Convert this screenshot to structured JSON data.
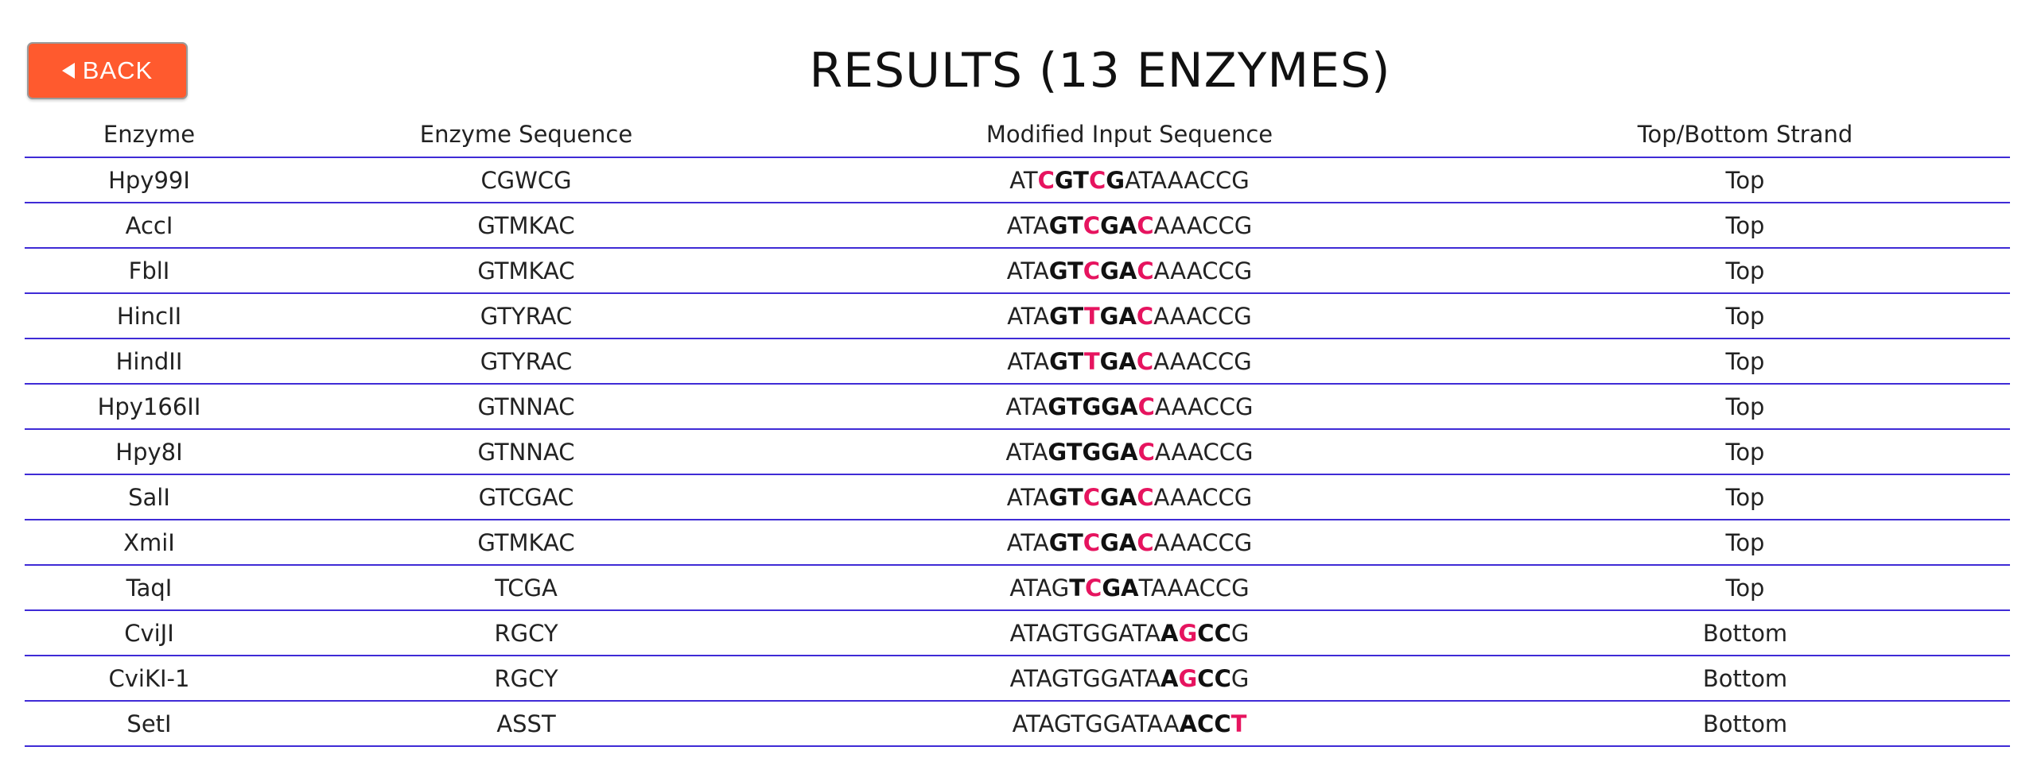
{
  "back_button": {
    "label": "BACK",
    "icon": "left-triangle-icon"
  },
  "title": "RESULTS (13 ENZYMES)",
  "colors": {
    "back_button_bg": "#ff5a2e",
    "divider": "#3f2bd6",
    "highlight": "#e6145f"
  },
  "table": {
    "headers": [
      "Enzyme",
      "Enzyme Sequence",
      "Modified Input Sequence",
      "Top/Bottom Strand"
    ],
    "rows": [
      {
        "enzyme": "Hpy99I",
        "enzyme_sequence": "CGWCG",
        "strand": "Top",
        "modified_sequence": [
          {
            "text": "AT",
            "style": "plain"
          },
          {
            "text": "C",
            "style": "hl"
          },
          {
            "text": "GT",
            "style": "bold"
          },
          {
            "text": "C",
            "style": "hl"
          },
          {
            "text": "G",
            "style": "bold"
          },
          {
            "text": "ATAAACCG",
            "style": "plain"
          }
        ]
      },
      {
        "enzyme": "AccI",
        "enzyme_sequence": "GTMKAC",
        "strand": "Top",
        "modified_sequence": [
          {
            "text": "ATA",
            "style": "plain"
          },
          {
            "text": "GT",
            "style": "bold"
          },
          {
            "text": "C",
            "style": "hl"
          },
          {
            "text": "GA",
            "style": "bold"
          },
          {
            "text": "C",
            "style": "hl"
          },
          {
            "text": "AAACCG",
            "style": "plain"
          }
        ]
      },
      {
        "enzyme": "FblI",
        "enzyme_sequence": "GTMKAC",
        "strand": "Top",
        "modified_sequence": [
          {
            "text": "ATA",
            "style": "plain"
          },
          {
            "text": "GT",
            "style": "bold"
          },
          {
            "text": "C",
            "style": "hl"
          },
          {
            "text": "GA",
            "style": "bold"
          },
          {
            "text": "C",
            "style": "hl"
          },
          {
            "text": "AAACCG",
            "style": "plain"
          }
        ]
      },
      {
        "enzyme": "HincII",
        "enzyme_sequence": "GTYRAC",
        "strand": "Top",
        "modified_sequence": [
          {
            "text": "ATA",
            "style": "plain"
          },
          {
            "text": "GT",
            "style": "bold"
          },
          {
            "text": "T",
            "style": "hl"
          },
          {
            "text": "GA",
            "style": "bold"
          },
          {
            "text": "C",
            "style": "hl"
          },
          {
            "text": "AAACCG",
            "style": "plain"
          }
        ]
      },
      {
        "enzyme": "HindII",
        "enzyme_sequence": "GTYRAC",
        "strand": "Top",
        "modified_sequence": [
          {
            "text": "ATA",
            "style": "plain"
          },
          {
            "text": "GT",
            "style": "bold"
          },
          {
            "text": "T",
            "style": "hl"
          },
          {
            "text": "GA",
            "style": "bold"
          },
          {
            "text": "C",
            "style": "hl"
          },
          {
            "text": "AAACCG",
            "style": "plain"
          }
        ]
      },
      {
        "enzyme": "Hpy166II",
        "enzyme_sequence": "GTNNAC",
        "strand": "Top",
        "modified_sequence": [
          {
            "text": "ATA",
            "style": "plain"
          },
          {
            "text": "GTGGA",
            "style": "bold"
          },
          {
            "text": "C",
            "style": "hl"
          },
          {
            "text": "AAACCG",
            "style": "plain"
          }
        ]
      },
      {
        "enzyme": "Hpy8I",
        "enzyme_sequence": "GTNNAC",
        "strand": "Top",
        "modified_sequence": [
          {
            "text": "ATA",
            "style": "plain"
          },
          {
            "text": "GTGGA",
            "style": "bold"
          },
          {
            "text": "C",
            "style": "hl"
          },
          {
            "text": "AAACCG",
            "style": "plain"
          }
        ]
      },
      {
        "enzyme": "SalI",
        "enzyme_sequence": "GTCGAC",
        "strand": "Top",
        "modified_sequence": [
          {
            "text": "ATA",
            "style": "plain"
          },
          {
            "text": "GT",
            "style": "bold"
          },
          {
            "text": "C",
            "style": "hl"
          },
          {
            "text": "GA",
            "style": "bold"
          },
          {
            "text": "C",
            "style": "hl"
          },
          {
            "text": "AAACCG",
            "style": "plain"
          }
        ]
      },
      {
        "enzyme": "XmiI",
        "enzyme_sequence": "GTMKAC",
        "strand": "Top",
        "modified_sequence": [
          {
            "text": "ATA",
            "style": "plain"
          },
          {
            "text": "GT",
            "style": "bold"
          },
          {
            "text": "C",
            "style": "hl"
          },
          {
            "text": "GA",
            "style": "bold"
          },
          {
            "text": "C",
            "style": "hl"
          },
          {
            "text": "AAACCG",
            "style": "plain"
          }
        ]
      },
      {
        "enzyme": "TaqI",
        "enzyme_sequence": "TCGA",
        "strand": "Top",
        "modified_sequence": [
          {
            "text": "ATAG",
            "style": "plain"
          },
          {
            "text": "T",
            "style": "bold"
          },
          {
            "text": "C",
            "style": "hl"
          },
          {
            "text": "GA",
            "style": "bold"
          },
          {
            "text": "TAAACCG",
            "style": "plain"
          }
        ]
      },
      {
        "enzyme": "CviJI",
        "enzyme_sequence": "RGCY",
        "strand": "Bottom",
        "modified_sequence": [
          {
            "text": "ATAGTGGATA",
            "style": "plain"
          },
          {
            "text": "A",
            "style": "bold"
          },
          {
            "text": "G",
            "style": "hl"
          },
          {
            "text": "CC",
            "style": "bold"
          },
          {
            "text": "G",
            "style": "plain"
          }
        ]
      },
      {
        "enzyme": "CviKI-1",
        "enzyme_sequence": "RGCY",
        "strand": "Bottom",
        "modified_sequence": [
          {
            "text": "ATAGTGGATA",
            "style": "plain"
          },
          {
            "text": "A",
            "style": "bold"
          },
          {
            "text": "G",
            "style": "hl"
          },
          {
            "text": "CC",
            "style": "bold"
          },
          {
            "text": "G",
            "style": "plain"
          }
        ]
      },
      {
        "enzyme": "SetI",
        "enzyme_sequence": "ASST",
        "strand": "Bottom",
        "modified_sequence": [
          {
            "text": "ATAGTGGATAA",
            "style": "plain"
          },
          {
            "text": "ACC",
            "style": "bold"
          },
          {
            "text": "T",
            "style": "hl"
          }
        ]
      }
    ]
  }
}
